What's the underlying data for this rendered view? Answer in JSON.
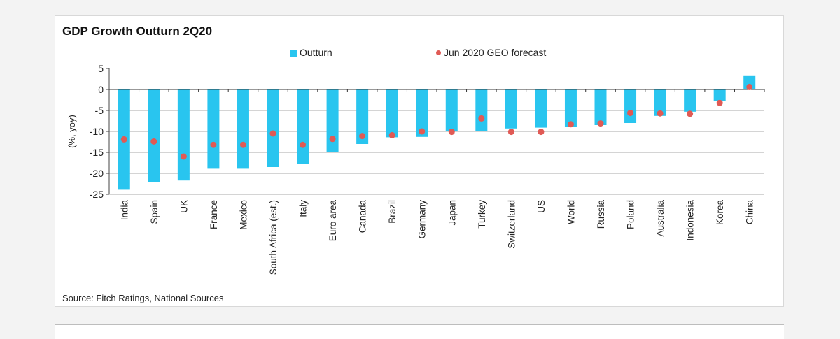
{
  "chart_data": {
    "type": "bar",
    "title": "GDP Growth Outturn 2Q20",
    "ylabel": "(%, yoy)",
    "xlabel": "",
    "ylim": [
      -25,
      5
    ],
    "yticks": [
      5,
      0,
      -5,
      -10,
      -15,
      -20,
      -25
    ],
    "categories": [
      "India",
      "Spain",
      "UK",
      "France",
      "Mexico",
      "South Africa (est.)",
      "Italy",
      "Euro area",
      "Canada",
      "Brazil",
      "Germany",
      "Japan",
      "Turkey",
      "Switzerland",
      "US",
      "World",
      "Russia",
      "Poland",
      "Australia",
      "Indonesia",
      "Korea",
      "China"
    ],
    "series": [
      {
        "name": "Outturn",
        "type": "bar",
        "color": "#29c5ef",
        "values": [
          -23.9,
          -22.1,
          -21.7,
          -18.9,
          -18.9,
          -18.5,
          -17.7,
          -15.0,
          -13.0,
          -11.4,
          -11.3,
          -10.0,
          -9.9,
          -9.3,
          -9.1,
          -9.0,
          -8.5,
          -8.0,
          -6.3,
          -5.3,
          -2.7,
          3.2
        ]
      },
      {
        "name": "Jun 2020 GEO forecast",
        "type": "scatter",
        "color": "#e05a55",
        "values": [
          -11.9,
          -12.4,
          -16.0,
          -13.2,
          -13.2,
          -10.5,
          -13.2,
          -11.8,
          -11.1,
          -10.9,
          -10.0,
          -10.1,
          -6.9,
          -10.1,
          -10.1,
          -8.3,
          -8.1,
          -5.6,
          -5.7,
          -5.8,
          -3.2,
          0.6
        ]
      }
    ],
    "legend": "top-center"
  },
  "source_note": "Source: Fitch Ratings, National Sources"
}
